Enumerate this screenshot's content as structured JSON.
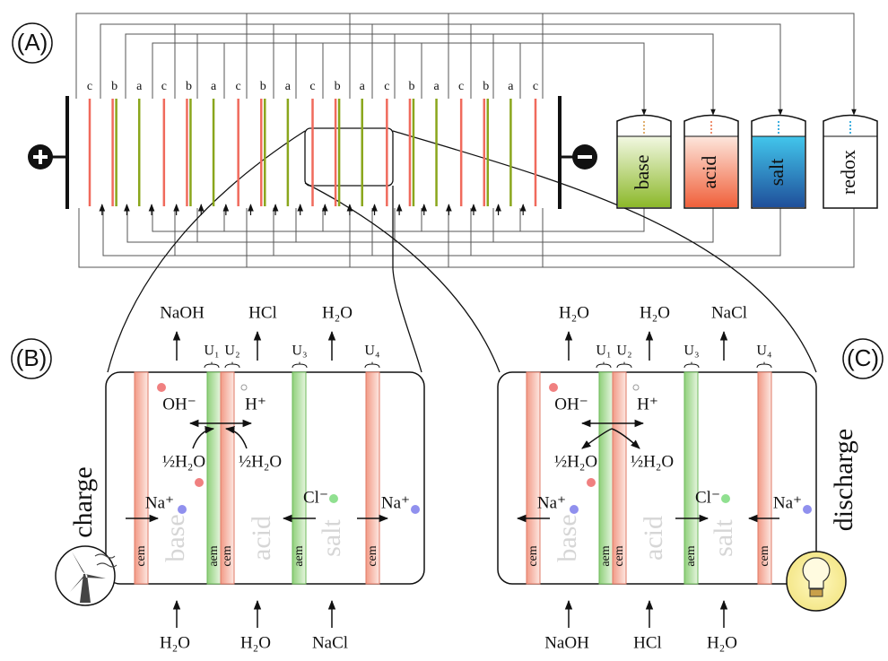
{
  "panel_a": {
    "label": "(A)",
    "membrane_labels": [
      "c",
      "b",
      "a",
      "c",
      "b",
      "a",
      "c",
      "b",
      "a",
      "c",
      "b",
      "a",
      "c",
      "b",
      "a",
      "c",
      "b",
      "a",
      "c"
    ],
    "tanks": [
      "base",
      "acid",
      "salt",
      "redox"
    ]
  },
  "panel_b": {
    "label": "(B)",
    "mode": "charge",
    "outputs": [
      "NaOH",
      "HCl",
      "H₂O"
    ],
    "inputs": [
      "H₂O",
      "H₂O",
      "NaCl"
    ],
    "junctions": [
      "U₁",
      "U₂",
      "U₃",
      "U₄"
    ],
    "species": [
      "OH⁻",
      "H⁺",
      "½H₂O",
      "½H₂O",
      "Na⁺",
      "Cl⁻",
      "Na⁺"
    ],
    "membranes": [
      "cem",
      "aem",
      "cem",
      "aem",
      "cem"
    ],
    "compartments": [
      "base",
      "acid",
      "salt"
    ]
  },
  "panel_c": {
    "label": "(C)",
    "mode": "discharge",
    "outputs": [
      "H₂O",
      "H₂O",
      "NaCl"
    ],
    "inputs": [
      "NaOH",
      "HCl",
      "H₂O"
    ],
    "junctions": [
      "U₁",
      "U₂",
      "U₃",
      "U₄"
    ],
    "species": [
      "OH⁻",
      "H⁺",
      "½H₂O",
      "½H₂O",
      "Na⁺",
      "Cl⁻",
      "Na⁺"
    ],
    "membranes": [
      "cem",
      "aem",
      "cem",
      "aem",
      "cem"
    ],
    "compartments": [
      "base",
      "acid",
      "salt"
    ]
  }
}
